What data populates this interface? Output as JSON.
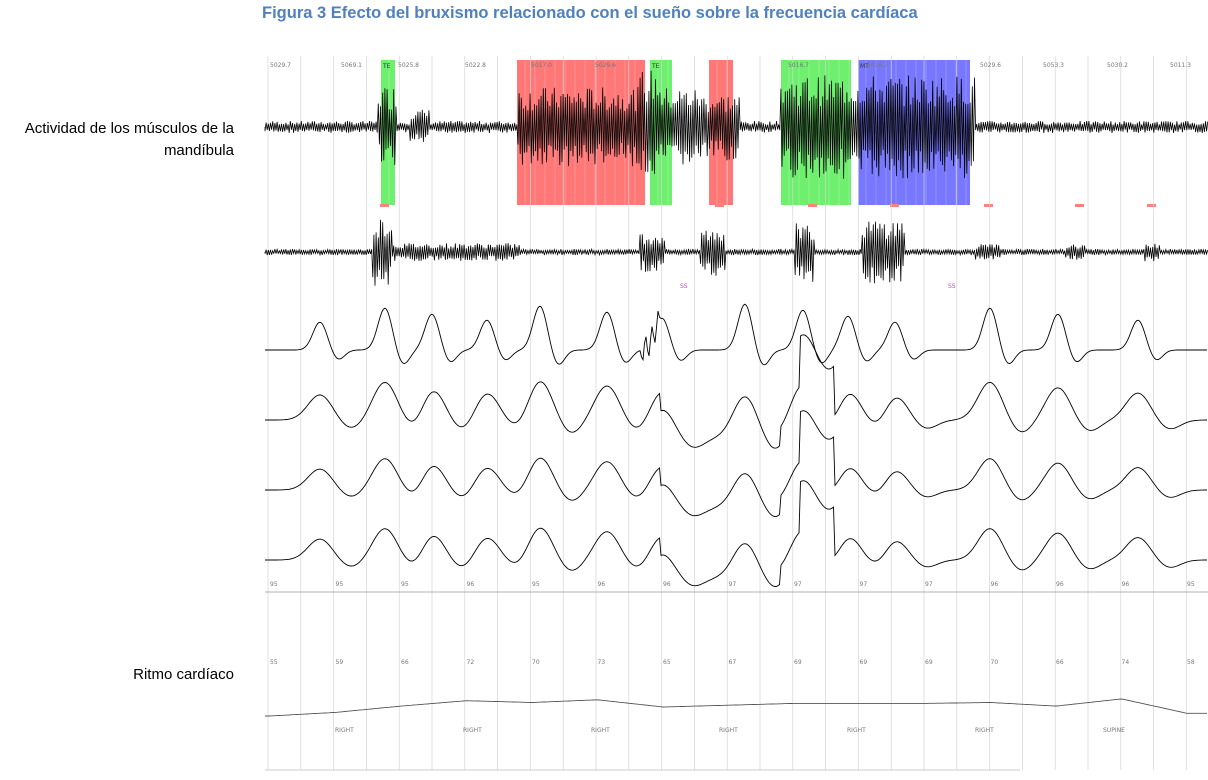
{
  "caption": "Figura 3 Efecto del bruxismo relacionado con el sueño sobre la frecuencia cardíaca",
  "labels": {
    "jaw": "Actividad de los músculos de la mandíbula",
    "heart": "Ritmo cardíaco"
  },
  "chart_data": {
    "type": "line",
    "timeline_ticks": [
      "5029.7",
      "5069.1",
      "5025.8",
      "5022.8",
      "5017.0",
      "5029.6",
      "5016.7",
      "5016.7",
      "5029.6",
      "5053.3",
      "5030.2",
      "5011.3"
    ],
    "events": [
      {
        "label": "TE",
        "color": "#66ee66"
      },
      {
        "label": "",
        "color": "#ff7070"
      },
      {
        "label": "TE",
        "color": "#66ee66"
      },
      {
        "label": "",
        "color": "#ff7070"
      },
      {
        "label": "",
        "color": "#66ee66"
      },
      {
        "label": "MT",
        "color": "#7070ff"
      }
    ],
    "spo2_values": [
      "95",
      "95",
      "95",
      "96",
      "95",
      "96",
      "96",
      "97",
      "97",
      "97",
      "97",
      "96",
      "96",
      "96",
      "95"
    ],
    "heart_rate_values": [
      "55",
      "59",
      "66",
      "72",
      "70",
      "73",
      "65",
      "67",
      "69",
      "69",
      "69",
      "70",
      "66",
      "74",
      "58"
    ],
    "position_labels": [
      "RIGHT",
      "RIGHT",
      "RIGHT",
      "RIGHT",
      "RIGHT",
      "RIGHT",
      "SUPINE"
    ],
    "markers": [
      {
        "label": "SS",
        "color": "#cc44cc"
      },
      {
        "label": "SS",
        "color": "#cc44cc"
      }
    ]
  }
}
